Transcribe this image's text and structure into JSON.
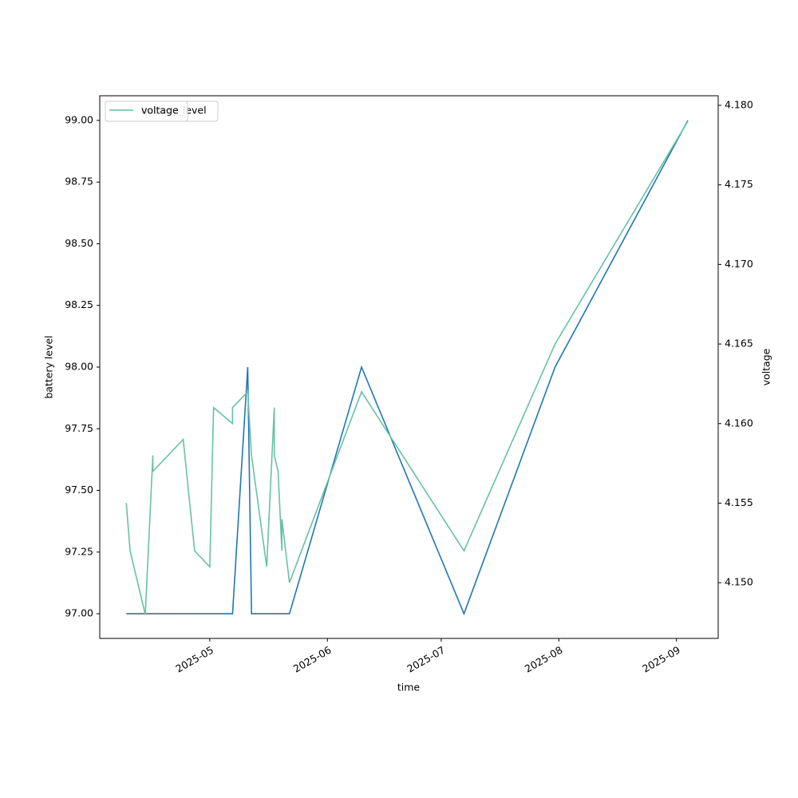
{
  "chart_data": {
    "type": "line",
    "x_label": "time",
    "y_label": "battery level",
    "y2_label": "voltage",
    "x": [
      "2025-04-09",
      "2025-05-07",
      "2025-05-11",
      "2025-05-12",
      "2025-05-22",
      "2025-06-10",
      "2025-07-07",
      "2025-07-31",
      "2025-09-04"
    ],
    "series": [
      {
        "name": "battery_level",
        "color": "#1f77b4",
        "axis": "y",
        "x": [
          "2025-04-09",
          "2025-05-07",
          "2025-05-11",
          "2025-05-12",
          "2025-05-22",
          "2025-06-10",
          "2025-07-07",
          "2025-07-31",
          "2025-09-04"
        ],
        "values": [
          97,
          97,
          98,
          97,
          97,
          98,
          97,
          98,
          99
        ]
      },
      {
        "name": "voltage",
        "color": "#66c2a5",
        "axis": "y2",
        "x": [
          "2025-04-09",
          "2025-04-10",
          "2025-04-14",
          "2025-04-16",
          "2025-04-16",
          "2025-04-24",
          "2025-04-27",
          "2025-05-01",
          "2025-05-02",
          "2025-05-07",
          "2025-05-07",
          "2025-05-11",
          "2025-05-12",
          "2025-05-16",
          "2025-05-18",
          "2025-05-18",
          "2025-05-19",
          "2025-05-20",
          "2025-05-20",
          "2025-05-22",
          "2025-06-10",
          "2025-07-07",
          "2025-07-31",
          "2025-09-04"
        ],
        "values": [
          4.155,
          4.152,
          4.148,
          4.158,
          4.157,
          4.159,
          4.152,
          4.151,
          4.161,
          4.16,
          4.161,
          4.162,
          4.158,
          4.151,
          4.161,
          4.158,
          4.157,
          4.152,
          4.154,
          4.15,
          4.162,
          4.152,
          4.165,
          4.179
        ]
      }
    ],
    "xlim": [
      "2025-04-02",
      "2025-09-12"
    ],
    "xticks": [
      {
        "value": "2025-05-01",
        "label": "2025-05"
      },
      {
        "value": "2025-06-01",
        "label": "2025-06"
      },
      {
        "value": "2025-07-01",
        "label": "2025-07"
      },
      {
        "value": "2025-08-01",
        "label": "2025-08"
      },
      {
        "value": "2025-09-01",
        "label": "2025-09"
      }
    ],
    "ylim": [
      96.9,
      99.1
    ],
    "yticks": [
      {
        "value": 97,
        "label": "97.00"
      },
      97.25,
      {
        "value": 97.5,
        "label": "97.50"
      },
      97.75,
      {
        "value": 98,
        "label": "98.00"
      },
      98.25,
      {
        "value": 98.5,
        "label": "98.50"
      },
      98.75,
      {
        "value": 99,
        "label": "99.00"
      }
    ],
    "y2lim": [
      4.1465,
      4.1806
    ],
    "y2ticks": [
      {
        "value": 4.15,
        "label": "4.150"
      },
      4.155,
      {
        "value": 4.16,
        "label": "4.160"
      },
      4.165,
      {
        "value": 4.17,
        "label": "4.170"
      },
      4.175,
      {
        "value": 4.18,
        "label": "4.180"
      }
    ],
    "legend": "upper left"
  }
}
